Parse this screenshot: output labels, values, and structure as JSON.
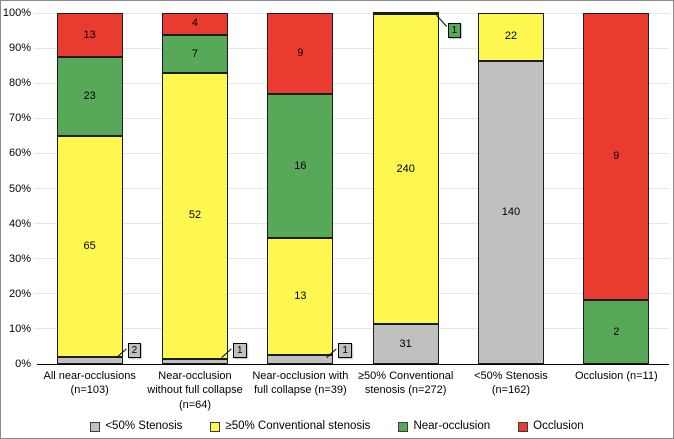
{
  "chart_data": {
    "type": "bar",
    "stacking": "percent",
    "title": "",
    "xlabel": "",
    "ylabel": "",
    "ylim": [
      0,
      100
    ],
    "grid": true,
    "legend_position": "bottom",
    "y_ticks": [
      "0%",
      "10%",
      "20%",
      "30%",
      "40%",
      "50%",
      "60%",
      "70%",
      "80%",
      "90%",
      "100%"
    ],
    "categories": [
      "All near-occlusions (n=103)",
      "Near-occlusion without full collapse (n=64)",
      "Near-occlusion with full collapse (n=39)",
      "≥50% Conventional stenosis (n=272)",
      "<50% Stenosis (n=162)",
      "Occlusion (n=11)"
    ],
    "totals": [
      103,
      64,
      39,
      272,
      162,
      11
    ],
    "series": [
      {
        "name": "<50% Stenosis",
        "color": "#c0c0c0",
        "pattern": "solid",
        "values": [
          2,
          1,
          1,
          31,
          140,
          0
        ]
      },
      {
        "name": "≥50% Conventional stenosis",
        "color": "#fdf750",
        "pattern": "dots",
        "values": [
          65,
          52,
          13,
          240,
          22,
          0
        ]
      },
      {
        "name": "Near-occlusion",
        "color": "#58a85a",
        "pattern": "solid",
        "values": [
          23,
          7,
          16,
          1,
          0,
          2
        ]
      },
      {
        "name": "Occlusion",
        "color": "#e93b30",
        "pattern": "solid",
        "values": [
          13,
          4,
          9,
          0,
          0,
          9
        ]
      }
    ],
    "callouts": [
      {
        "category": 0,
        "series": 0,
        "value": 2,
        "placement": "bottom-right"
      },
      {
        "category": 1,
        "series": 0,
        "value": 1,
        "placement": "bottom-right"
      },
      {
        "category": 2,
        "series": 0,
        "value": 1,
        "placement": "bottom-right"
      },
      {
        "category": 3,
        "series": 2,
        "value": 1,
        "placement": "top-right"
      }
    ],
    "colors": {
      "gridline": "#e6e6e6",
      "axis": "#000000",
      "segment_border": "#1c1c1c",
      "text": "#000000"
    }
  }
}
